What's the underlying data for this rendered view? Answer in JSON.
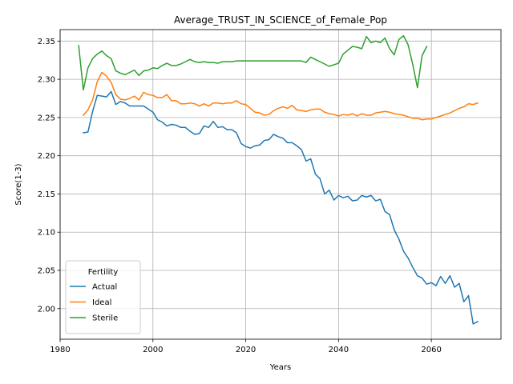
{
  "chart_data": {
    "type": "line",
    "title": "Average_TRUST_IN_SCIENCE_of_Female_Pop",
    "xlabel": "Years",
    "ylabel": "Score(1-3)",
    "xlim": [
      1980,
      2075
    ],
    "ylim": [
      1.96,
      2.365
    ],
    "xticks": [
      1980,
      2000,
      2020,
      2040,
      2060
    ],
    "yticks": [
      2.0,
      2.05,
      2.1,
      2.15,
      2.2,
      2.25,
      2.3,
      2.35
    ],
    "grid": true,
    "legend": {
      "title": "Fertility",
      "placement": "lower-left"
    },
    "series": [
      {
        "name": "Actual",
        "color": "#1f77b4",
        "x": [
          1985,
          1986,
          1987,
          1988,
          1989,
          1990,
          1991,
          1992,
          1993,
          1994,
          1995,
          1996,
          1997,
          1998,
          1999,
          2000,
          2001,
          2002,
          2003,
          2004,
          2005,
          2006,
          2007,
          2008,
          2009,
          2010,
          2011,
          2012,
          2013,
          2014,
          2015,
          2016,
          2017,
          2018,
          2019,
          2020,
          2021,
          2022,
          2023,
          2024,
          2025,
          2026,
          2027,
          2028,
          2029,
          2030,
          2031,
          2032,
          2033,
          2034,
          2035,
          2036,
          2037,
          2038,
          2039,
          2040,
          2041,
          2042,
          2043,
          2044,
          2045,
          2046,
          2047,
          2048,
          2049,
          2050,
          2051,
          2052,
          2053,
          2054,
          2055,
          2056,
          2057,
          2058,
          2059,
          2060,
          2061,
          2062,
          2063,
          2064,
          2065,
          2066,
          2067,
          2068,
          2069,
          2070
        ],
        "values": [
          2.23,
          2.231,
          2.258,
          2.279,
          2.278,
          2.277,
          2.284,
          2.267,
          2.271,
          2.269,
          2.265,
          2.265,
          2.265,
          2.265,
          2.261,
          2.257,
          2.247,
          2.244,
          2.239,
          2.241,
          2.24,
          2.237,
          2.237,
          2.232,
          2.228,
          2.229,
          2.239,
          2.237,
          2.245,
          2.237,
          2.238,
          2.234,
          2.234,
          2.23,
          2.216,
          2.212,
          2.21,
          2.213,
          2.214,
          2.22,
          2.221,
          2.228,
          2.225,
          2.223,
          2.217,
          2.217,
          2.213,
          2.208,
          2.193,
          2.196,
          2.176,
          2.17,
          2.15,
          2.155,
          2.142,
          2.148,
          2.145,
          2.147,
          2.141,
          2.142,
          2.148,
          2.146,
          2.148,
          2.141,
          2.143,
          2.127,
          2.123,
          2.103,
          2.091,
          2.075,
          2.066,
          2.054,
          2.043,
          2.04,
          2.032,
          2.034,
          2.03,
          2.042,
          2.033,
          2.043,
          2.028,
          2.033,
          2.009,
          2.017,
          1.98,
          1.983
        ]
      },
      {
        "name": "Ideal",
        "color": "#ff7f0e",
        "x": [
          1985,
          1986,
          1987,
          1988,
          1989,
          1990,
          1991,
          1992,
          1993,
          1994,
          1995,
          1996,
          1997,
          1998,
          1999,
          2000,
          2001,
          2002,
          2003,
          2004,
          2005,
          2006,
          2007,
          2008,
          2009,
          2010,
          2011,
          2012,
          2013,
          2014,
          2015,
          2016,
          2017,
          2018,
          2019,
          2020,
          2021,
          2022,
          2023,
          2024,
          2025,
          2026,
          2027,
          2028,
          2029,
          2030,
          2031,
          2032,
          2033,
          2034,
          2035,
          2036,
          2037,
          2038,
          2039,
          2040,
          2041,
          2042,
          2043,
          2044,
          2045,
          2046,
          2047,
          2048,
          2049,
          2050,
          2051,
          2052,
          2053,
          2054,
          2055,
          2056,
          2057,
          2058,
          2059,
          2060,
          2061,
          2062,
          2063,
          2064,
          2065,
          2066,
          2067,
          2068,
          2069,
          2070
        ],
        "values": [
          2.253,
          2.26,
          2.273,
          2.297,
          2.309,
          2.304,
          2.296,
          2.28,
          2.274,
          2.273,
          2.275,
          2.278,
          2.273,
          2.283,
          2.28,
          2.279,
          2.276,
          2.276,
          2.28,
          2.272,
          2.272,
          2.268,
          2.268,
          2.269,
          2.268,
          2.265,
          2.268,
          2.265,
          2.269,
          2.269,
          2.268,
          2.269,
          2.269,
          2.272,
          2.268,
          2.267,
          2.262,
          2.257,
          2.256,
          2.253,
          2.254,
          2.259,
          2.262,
          2.264,
          2.262,
          2.266,
          2.26,
          2.259,
          2.258,
          2.26,
          2.261,
          2.261,
          2.257,
          2.255,
          2.254,
          2.252,
          2.254,
          2.253,
          2.255,
          2.252,
          2.255,
          2.253,
          2.253,
          2.256,
          2.257,
          2.258,
          2.257,
          2.255,
          2.254,
          2.253,
          2.251,
          2.249,
          2.249,
          2.247,
          2.248,
          2.248,
          2.25,
          2.252,
          2.254,
          2.256,
          2.259,
          2.262,
          2.264,
          2.268,
          2.267,
          2.269
        ]
      },
      {
        "name": "Sterile",
        "color": "#2ca02c",
        "x": [
          1984,
          1985,
          1986,
          1987,
          1988,
          1989,
          1990,
          1991,
          1992,
          1993,
          1994,
          1995,
          1996,
          1997,
          1998,
          1999,
          2000,
          2001,
          2002,
          2003,
          2004,
          2005,
          2006,
          2007,
          2008,
          2009,
          2010,
          2011,
          2012,
          2013,
          2014,
          2015,
          2016,
          2017,
          2018,
          2019,
          2020,
          2021,
          2022,
          2023,
          2024,
          2025,
          2026,
          2027,
          2028,
          2029,
          2030,
          2031,
          2032,
          2033,
          2034,
          2035,
          2036,
          2037,
          2038,
          2039,
          2040,
          2041,
          2042,
          2043,
          2044,
          2045,
          2046,
          2047,
          2048,
          2049,
          2050,
          2051,
          2052,
          2053,
          2054,
          2055,
          2056,
          2057,
          2058,
          2059
        ],
        "values": [
          2.344,
          2.286,
          2.315,
          2.327,
          2.333,
          2.337,
          2.331,
          2.327,
          2.311,
          2.308,
          2.306,
          2.309,
          2.312,
          2.305,
          2.311,
          2.312,
          2.315,
          2.314,
          2.318,
          2.321,
          2.318,
          2.318,
          2.32,
          2.323,
          2.326,
          2.323,
          2.322,
          2.323,
          2.322,
          2.322,
          2.321,
          2.323,
          2.323,
          2.323,
          2.324,
          2.324,
          2.324,
          2.324,
          2.324,
          2.324,
          2.324,
          2.324,
          2.324,
          2.324,
          2.324,
          2.324,
          2.324,
          2.324,
          2.324,
          2.322,
          2.329,
          2.326,
          2.323,
          2.32,
          2.317,
          2.319,
          2.321,
          2.333,
          2.338,
          2.343,
          2.342,
          2.34,
          2.356,
          2.348,
          2.35,
          2.348,
          2.354,
          2.34,
          2.332,
          2.352,
          2.357,
          2.345,
          2.319,
          2.289,
          2.331,
          2.343
        ]
      }
    ]
  }
}
